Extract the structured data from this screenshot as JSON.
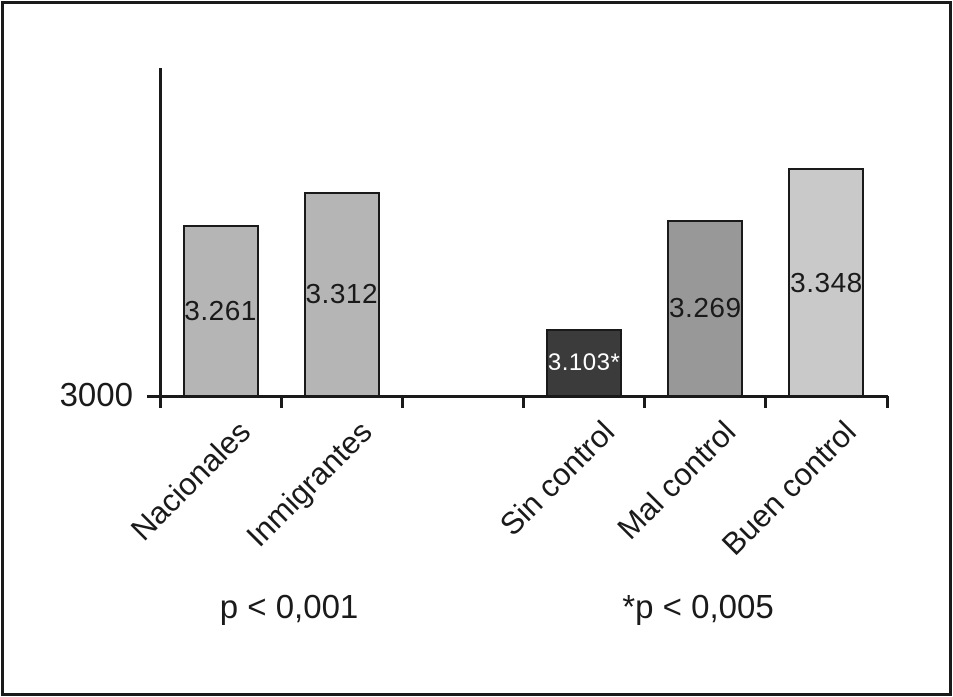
{
  "chart_data": {
    "type": "bar",
    "title": "",
    "xlabel": "",
    "ylabel": "",
    "categories": [
      "Nacionales",
      "Inmigrantes",
      "Sin control",
      "Mal control",
      "Buen control"
    ],
    "values": [
      3261,
      3312,
      3103,
      3269,
      3348
    ],
    "bars": [
      {
        "category": "Nacionales",
        "value": 3261,
        "label": "3.261",
        "slot": 0,
        "color": "#b5b5b5",
        "label_color": "#1a1a1a"
      },
      {
        "category": "Inmigrantes",
        "value": 3312,
        "label": "3.312",
        "slot": 1,
        "color": "#b5b5b5",
        "label_color": "#1a1a1a"
      },
      {
        "category": "Sin control",
        "value": 3103,
        "label": "3.103*",
        "slot": 3,
        "color": "#3b3b3b",
        "label_color": "#ffffff"
      },
      {
        "category": "Mal control",
        "value": 3269,
        "label": "3.269",
        "slot": 4,
        "color": "#989898",
        "label_color": "#1a1a1a"
      },
      {
        "category": "Buen control",
        "value": 3348,
        "label": "3.348",
        "slot": 5,
        "color": "#c9c9c9",
        "label_color": "#1a1a1a"
      }
    ],
    "y_baseline": {
      "value": 3000,
      "label": "3000"
    },
    "ylim": [
      3000,
      3500
    ],
    "num_slots": 6,
    "annotations": [
      {
        "text": "p < 0,001"
      },
      {
        "text": "*p < 0,005"
      }
    ],
    "axis_color": "#1a1a1a",
    "grid": false,
    "legend": false
  }
}
